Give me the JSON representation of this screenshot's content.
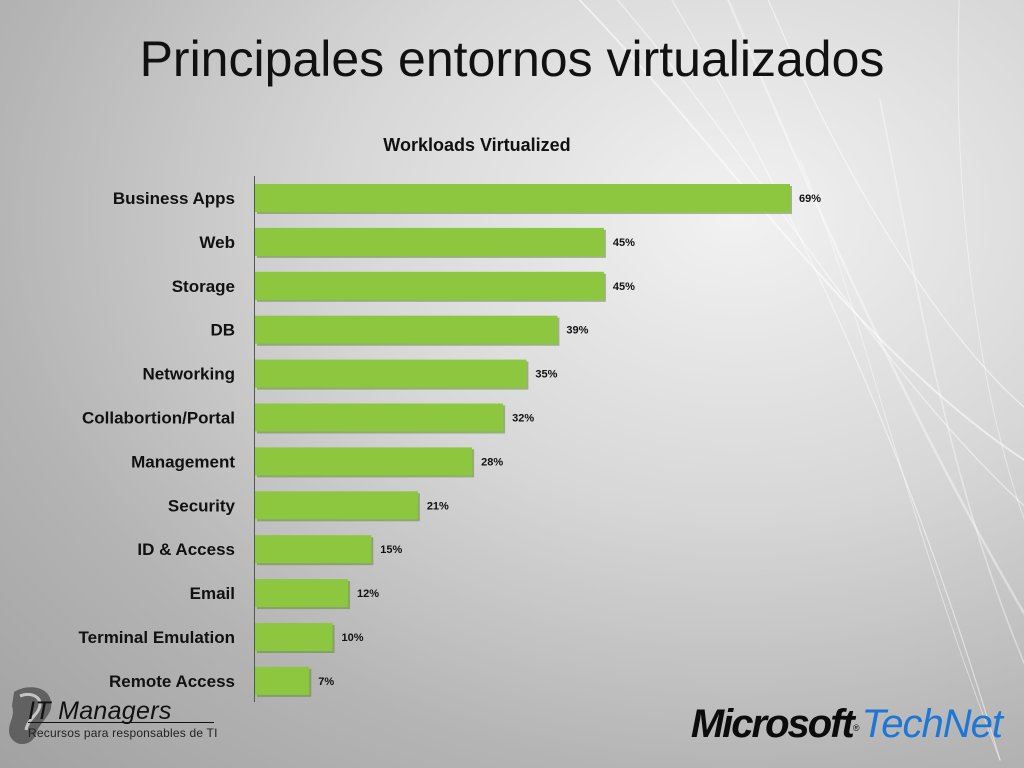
{
  "slide": {
    "title": "Principales entornos virtualizados"
  },
  "colors": {
    "bar_fill": "#8dc63f",
    "bar_shadow": "#5f8a2c",
    "text": "#111111",
    "technet_blue": "#1e76d6"
  },
  "chart_data": {
    "type": "bar",
    "orientation": "horizontal",
    "title": "Workloads Virtualized",
    "categories": [
      "Business Apps",
      "Web",
      "Storage",
      "DB",
      "Networking",
      "Collabortion/Portal",
      "Management",
      "Security",
      "ID & Access",
      "Email",
      "Terminal Emulation",
      "Remote Access"
    ],
    "values": [
      69,
      45,
      45,
      39,
      35,
      32,
      28,
      21,
      15,
      12,
      10,
      7
    ],
    "data_labels": [
      "69%",
      "45%",
      "45%",
      "39%",
      "35%",
      "32%",
      "28%",
      "21%",
      "15%",
      "12%",
      "10%",
      "7%"
    ],
    "unit": "%",
    "xlim": [
      0,
      100
    ],
    "grid": false,
    "legend": "none"
  },
  "footer": {
    "left_logo_title": "IT Managers",
    "left_logo_subtitle": "Recursos para responsables de TI",
    "right_logo_brand": "Microsoft",
    "right_logo_registered": "®",
    "right_logo_product": "TechNet"
  }
}
